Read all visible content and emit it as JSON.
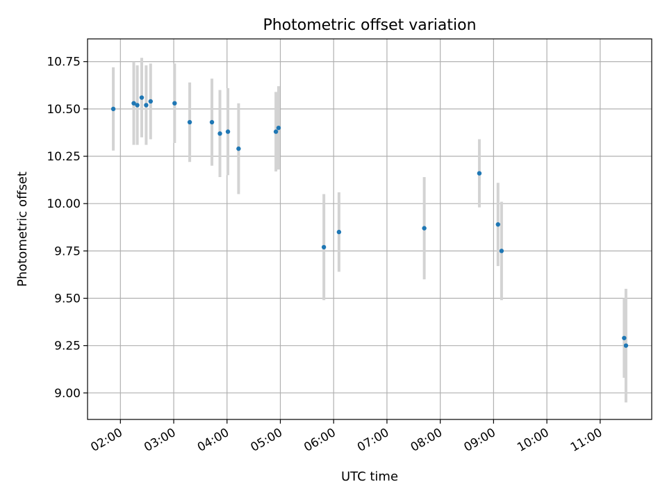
{
  "chart_data": {
    "type": "scatter",
    "title": "Photometric offset variation",
    "xlabel": "UTC time",
    "ylabel": "Photometric offset",
    "xlim": [
      "01:23",
      "11:58"
    ],
    "ylim": [
      8.86,
      10.87
    ],
    "grid": true,
    "x_ticks": [
      "02:00",
      "03:00",
      "04:00",
      "05:00",
      "06:00",
      "07:00",
      "08:00",
      "09:00",
      "10:00",
      "11:00"
    ],
    "y_ticks": [
      "9.00",
      "9.25",
      "9.50",
      "9.75",
      "10.00",
      "10.25",
      "10.50",
      "10.75"
    ],
    "colors": {
      "point": "#1f77b4",
      "errorbar": "#d3d3d3",
      "grid": "#b0b0b0"
    },
    "points": [
      {
        "x": "01:52",
        "y": 10.5,
        "yerr": 0.22
      },
      {
        "x": "02:15",
        "y": 10.53,
        "yerr": 0.22
      },
      {
        "x": "02:19",
        "y": 10.52,
        "yerr": 0.21
      },
      {
        "x": "02:24",
        "y": 10.56,
        "yerr": 0.21
      },
      {
        "x": "02:29",
        "y": 10.52,
        "yerr": 0.21
      },
      {
        "x": "02:34",
        "y": 10.54,
        "yerr": 0.2
      },
      {
        "x": "03:01",
        "y": 10.53,
        "yerr": 0.21
      },
      {
        "x": "03:18",
        "y": 10.43,
        "yerr": 0.21
      },
      {
        "x": "03:43",
        "y": 10.43,
        "yerr": 0.23
      },
      {
        "x": "03:52",
        "y": 10.37,
        "yerr": 0.23
      },
      {
        "x": "04:01",
        "y": 10.38,
        "yerr": 0.23
      },
      {
        "x": "04:13",
        "y": 10.29,
        "yerr": 0.24
      },
      {
        "x": "04:55",
        "y": 10.38,
        "yerr": 0.21
      },
      {
        "x": "04:58",
        "y": 10.4,
        "yerr": 0.22
      },
      {
        "x": "05:49",
        "y": 9.77,
        "yerr": 0.28
      },
      {
        "x": "06:06",
        "y": 9.85,
        "yerr": 0.21
      },
      {
        "x": "07:42",
        "y": 9.87,
        "yerr": 0.27
      },
      {
        "x": "08:44",
        "y": 10.16,
        "yerr": 0.18
      },
      {
        "x": "09:05",
        "y": 9.89,
        "yerr": 0.22
      },
      {
        "x": "09:09",
        "y": 9.75,
        "yerr": 0.26
      },
      {
        "x": "11:27",
        "y": 9.29,
        "yerr": 0.21
      },
      {
        "x": "11:29",
        "y": 9.25,
        "yerr": 0.3
      }
    ]
  }
}
